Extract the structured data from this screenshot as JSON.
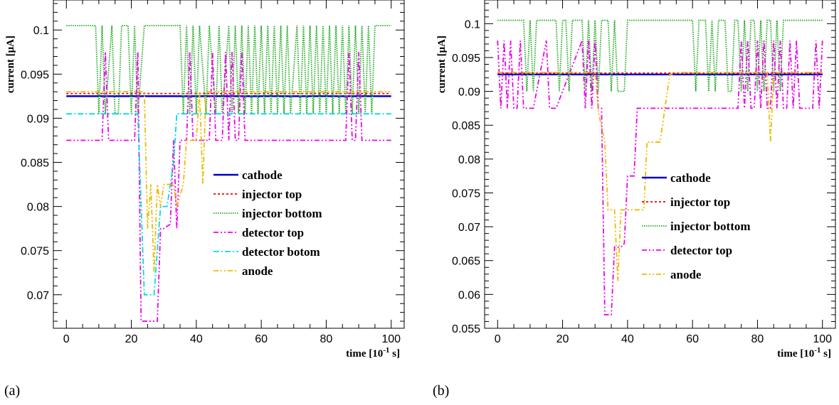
{
  "chart_data": [
    {
      "type": "line",
      "panel_label": "(a)",
      "xlabel": "time [10",
      "xlabel_exp": "-1",
      "xlabel_tail": " s]",
      "ylabel": "current [μA]",
      "xlim": [
        -4,
        104
      ],
      "ylim": [
        0.0662,
        0.1034
      ],
      "x_ticks": [
        0,
        20,
        40,
        60,
        80,
        100
      ],
      "y_ticks": [
        0.07,
        0.075,
        0.08,
        0.085,
        0.09,
        0.095,
        0.1
      ],
      "y_tick_labels": [
        "0.07",
        "0.075",
        "0.08",
        "0.085",
        "0.09",
        "0.095",
        "0.1"
      ],
      "grid": false,
      "legend_position": "center-right",
      "series": [
        {
          "name": "cathode",
          "color": "#0000cc",
          "dash": "solid",
          "x": [
            0,
            100
          ],
          "y": [
            0.0925,
            0.0925
          ]
        },
        {
          "name": "injector top",
          "color": "#ee0000",
          "dash": "dotted",
          "x": [
            0,
            100
          ],
          "y": [
            0.0928,
            0.0928
          ]
        },
        {
          "name": "injector bottom",
          "color": "#22aa22",
          "dash": "finedot",
          "x": [
            0,
            9,
            10,
            11,
            12,
            14,
            15,
            16,
            17,
            19,
            20,
            21,
            22,
            24,
            35,
            36,
            37,
            38,
            39,
            40,
            41,
            43,
            44,
            46,
            47,
            48,
            50,
            51,
            52,
            53,
            54,
            55,
            56,
            57,
            58,
            59,
            60,
            61,
            62,
            63,
            64,
            65,
            66,
            67,
            68,
            69,
            71,
            72,
            73,
            74,
            75,
            76,
            77,
            78,
            79,
            80,
            81,
            82,
            83,
            84,
            85,
            86,
            87,
            88,
            89,
            90,
            91,
            92,
            93,
            94,
            95,
            96,
            100
          ],
          "y": [
            0.1005,
            0.1005,
            0.0905,
            0.1005,
            0.0905,
            0.1005,
            0.0905,
            0.0905,
            0.1005,
            0.1005,
            0.0905,
            0.1005,
            0.0905,
            0.1005,
            0.1005,
            0.0905,
            0.1005,
            0.0905,
            0.1005,
            0.0905,
            0.1005,
            0.0905,
            0.1005,
            0.0905,
            0.1005,
            0.0905,
            0.1005,
            0.0905,
            0.1005,
            0.0905,
            0.1005,
            0.0905,
            0.1005,
            0.0905,
            0.1005,
            0.0905,
            0.1005,
            0.0905,
            0.1005,
            0.0905,
            0.1005,
            0.0905,
            0.1005,
            0.0905,
            0.1005,
            0.0905,
            0.1005,
            0.0905,
            0.1005,
            0.0905,
            0.1005,
            0.0905,
            0.1005,
            0.0905,
            0.1005,
            0.0905,
            0.1005,
            0.0905,
            0.1005,
            0.0905,
            0.1005,
            0.0905,
            0.1005,
            0.0905,
            0.1005,
            0.0905,
            0.1005,
            0.0905,
            0.1005,
            0.0905,
            0.1005,
            0.1005,
            0.1005
          ]
        },
        {
          "name": "detector top",
          "color": "#ee00ee",
          "dash": "dashdotdot",
          "x": [
            0,
            11,
            12,
            13,
            14,
            21,
            22,
            23,
            24,
            28,
            29,
            30,
            32,
            33,
            34,
            35,
            36,
            37,
            38,
            39,
            40,
            44,
            45,
            46,
            47,
            48,
            49,
            50,
            51,
            52,
            53,
            54,
            55,
            56,
            86,
            87,
            88,
            89,
            90,
            91,
            92,
            93,
            100
          ],
          "y": [
            0.0875,
            0.0875,
            0.0975,
            0.0875,
            0.0875,
            0.0875,
            0.0975,
            0.067,
            0.067,
            0.067,
            0.0775,
            0.0775,
            0.078,
            0.0875,
            0.0775,
            0.0875,
            0.0875,
            0.0875,
            0.0975,
            0.0875,
            0.0875,
            0.0875,
            0.0975,
            0.0875,
            0.0875,
            0.0875,
            0.0975,
            0.0875,
            0.0975,
            0.0875,
            0.0875,
            0.0975,
            0.0875,
            0.0875,
            0.0875,
            0.0975,
            0.0875,
            0.0875,
            0.0975,
            0.0875,
            0.0875,
            0.0875,
            0.0875
          ]
        },
        {
          "name": "detector botom",
          "color": "#00dddd",
          "dash": "dashdot",
          "x": [
            0,
            22,
            24,
            27,
            29,
            31,
            33,
            34,
            100
          ],
          "y": [
            0.0905,
            0.0905,
            0.07,
            0.07,
            0.08,
            0.08,
            0.085,
            0.0905,
            0.0905
          ]
        },
        {
          "name": "anode",
          "color": "#eebb00",
          "dash": "dashdotdot",
          "x": [
            0,
            23,
            24,
            25,
            26,
            27,
            28,
            29,
            30,
            32,
            33,
            34,
            36,
            37,
            40,
            41,
            42,
            43,
            44,
            100
          ],
          "y": [
            0.093,
            0.093,
            0.093,
            0.0775,
            0.0825,
            0.0725,
            0.0825,
            0.08,
            0.0825,
            0.0825,
            0.0825,
            0.08,
            0.0825,
            0.0875,
            0.0875,
            0.093,
            0.0825,
            0.093,
            0.093,
            0.093
          ]
        }
      ]
    },
    {
      "type": "line",
      "panel_label": "(b)",
      "xlabel": "time [10",
      "xlabel_exp": "-1",
      "xlabel_tail": " s]",
      "ylabel": "current [μA]",
      "xlim": [
        -4,
        104
      ],
      "ylim": [
        0.055,
        0.1035
      ],
      "x_ticks": [
        0,
        20,
        40,
        60,
        80,
        100
      ],
      "y_ticks": [
        0.055,
        0.06,
        0.065,
        0.07,
        0.075,
        0.08,
        0.085,
        0.09,
        0.095,
        0.1
      ],
      "y_tick_labels": [
        "0.055",
        "0.06",
        "0.065",
        "0.07",
        "0.075",
        "0.08",
        "0.085",
        "0.09",
        "0.095",
        "0.1"
      ],
      "grid": false,
      "legend_position": "center-right",
      "series": [
        {
          "name": "cathode",
          "color": "#0000cc",
          "dash": "solid",
          "x": [
            0,
            100
          ],
          "y": [
            0.0925,
            0.0925
          ]
        },
        {
          "name": "injector top",
          "color": "#ee0000",
          "dash": "dotted",
          "x": [
            0,
            100
          ],
          "y": [
            0.0927,
            0.0927
          ]
        },
        {
          "name": "injector bottom",
          "color": "#22aa22",
          "dash": "finedot",
          "x": [
            0,
            8,
            9,
            10,
            11,
            12,
            13,
            18,
            19,
            20,
            21,
            22,
            23,
            26,
            27,
            28,
            29,
            30,
            31,
            32,
            33,
            34,
            35,
            36,
            37,
            38,
            39,
            40,
            41,
            43,
            44,
            60,
            61,
            62,
            63,
            64,
            65,
            66,
            67,
            68,
            69,
            70,
            71,
            72,
            73,
            74,
            75,
            76,
            77,
            78,
            79,
            80,
            81,
            82,
            83,
            84,
            85,
            86,
            87,
            88,
            89,
            90,
            91,
            92,
            93,
            100
          ],
          "y": [
            0.1005,
            0.1005,
            0.09,
            0.1005,
            0.09,
            0.1005,
            0.1005,
            0.1005,
            0.09,
            0.1005,
            0.1005,
            0.09,
            0.1005,
            0.1005,
            0.09,
            0.1005,
            0.09,
            0.1005,
            0.09,
            0.1005,
            0.1005,
            0.1005,
            0.09,
            0.1005,
            0.09,
            0.09,
            0.09,
            0.1005,
            0.1005,
            0.1005,
            0.1005,
            0.1005,
            0.09,
            0.1005,
            0.1005,
            0.1005,
            0.09,
            0.1005,
            0.09,
            0.1005,
            0.1005,
            0.1005,
            0.09,
            0.09,
            0.1005,
            0.1005,
            0.09,
            0.1005,
            0.09,
            0.1005,
            0.1005,
            0.09,
            0.1005,
            0.09,
            0.1005,
            0.1005,
            0.09,
            0.1005,
            0.09,
            0.1005,
            0.1005,
            0.1005,
            0.1005,
            0.1005,
            0.1005,
            0.1005
          ]
        },
        {
          "name": "detector top",
          "color": "#ee00ee",
          "dash": "dashdotdot",
          "x": [
            0,
            1,
            2,
            3,
            4,
            5,
            6,
            7,
            8,
            9,
            10,
            11,
            15,
            16,
            17,
            18,
            26,
            27,
            28,
            29,
            30,
            31,
            32,
            33,
            34,
            35,
            36,
            37,
            38,
            39,
            40,
            42,
            43,
            44,
            46,
            47,
            48,
            50,
            51,
            52,
            53,
            54,
            55,
            56,
            57,
            58,
            59,
            60,
            61,
            62,
            63,
            64,
            65,
            66,
            67,
            68,
            69,
            70,
            74,
            75,
            76,
            77,
            78,
            79,
            80,
            81,
            82,
            83,
            84,
            85,
            86,
            87,
            88,
            89,
            90,
            91,
            92,
            93,
            94,
            95,
            96,
            97,
            98,
            99,
            100
          ],
          "y": [
            0.0975,
            0.0875,
            0.0975,
            0.0875,
            0.0975,
            0.0875,
            0.0875,
            0.0975,
            0.0875,
            0.0875,
            0.0875,
            0.0875,
            0.0975,
            0.0875,
            0.0875,
            0.0875,
            0.0975,
            0.0875,
            0.0975,
            0.0875,
            0.0975,
            0.0875,
            0.0875,
            0.057,
            0.057,
            0.057,
            0.067,
            0.067,
            0.067,
            0.0675,
            0.0775,
            0.0775,
            0.0875,
            0.0875,
            0.0875,
            0.0875,
            0.0875,
            0.0875,
            0.0875,
            0.0875,
            0.0875,
            0.0875,
            0.0875,
            0.0875,
            0.0875,
            0.0875,
            0.0875,
            0.0875,
            0.0875,
            0.0875,
            0.0875,
            0.0875,
            0.0875,
            0.0875,
            0.0875,
            0.0875,
            0.0875,
            0.0875,
            0.0875,
            0.0975,
            0.0875,
            0.0975,
            0.0875,
            0.0875,
            0.0975,
            0.0875,
            0.0975,
            0.0875,
            0.0875,
            0.0975,
            0.0875,
            0.0975,
            0.0875,
            0.0875,
            0.0975,
            0.0875,
            0.0975,
            0.0875,
            0.0875,
            0.0875,
            0.0875,
            0.0875,
            0.0975,
            0.0875,
            0.0975
          ]
        },
        {
          "name": "anode",
          "color": "#eebb00",
          "dash": "dashdotdot",
          "x": [
            0,
            30,
            31,
            33,
            34,
            35,
            36,
            37,
            38,
            40,
            45,
            46,
            49,
            50,
            53,
            54,
            55,
            56,
            60,
            83,
            84,
            85,
            100
          ],
          "y": [
            0.0928,
            0.0928,
            0.087,
            0.0825,
            0.0725,
            0.0725,
            0.0725,
            0.062,
            0.0725,
            0.0725,
            0.0725,
            0.0825,
            0.0825,
            0.0825,
            0.0925,
            0.0925,
            0.0928,
            0.0928,
            0.0928,
            0.0928,
            0.0825,
            0.0928,
            0.0928
          ]
        }
      ]
    }
  ]
}
